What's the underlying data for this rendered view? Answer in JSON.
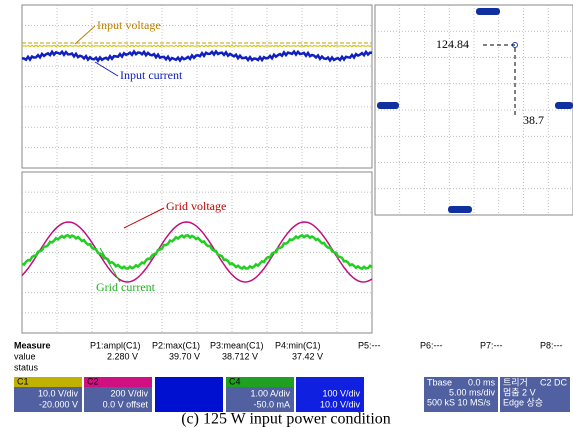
{
  "top_scope": {
    "labels": [
      "Input voltage",
      "Input current"
    ]
  },
  "xy_plot": {
    "labels": [
      "124.84",
      "38.7"
    ]
  },
  "bottom_scope": {
    "labels": [
      "Grid voltage",
      "Grid current"
    ]
  },
  "measure": {
    "headers": [
      "Measure",
      "P1:ampl(C1)",
      "P2:max(C1)",
      "P3:mean(C1)",
      "P4:min(C1)",
      "P5:---",
      "P6:---",
      "P7:---",
      "P8:---"
    ],
    "value_label": "value",
    "values": [
      "2.280 V",
      "39.70 V",
      "38.712 V",
      "37.42 V"
    ],
    "status_label": "status"
  },
  "channels": [
    {
      "name": "C1",
      "lines": [
        "10.0 V/div",
        "-20.000 V"
      ]
    },
    {
      "name": "C2",
      "lines": [
        "200 V/div",
        "0.0 V offset"
      ]
    },
    {
      "name": "C4",
      "lines": [
        "1.00 A/div",
        "-50.0 mA"
      ]
    },
    {
      "lines": [
        "100 V/div",
        "10.0 V/div"
      ]
    }
  ],
  "timebase": {
    "label": "Tbase",
    "lines": [
      "0.0 ms",
      "5.00 ms/div",
      "500 kS    10 MS/s"
    ]
  },
  "trigger": {
    "label": "트리거",
    "lines": [
      "C2 DC",
      "멈춤    2 V",
      "Edge    상승"
    ]
  },
  "caption": "(c) 125 W input power condition"
}
